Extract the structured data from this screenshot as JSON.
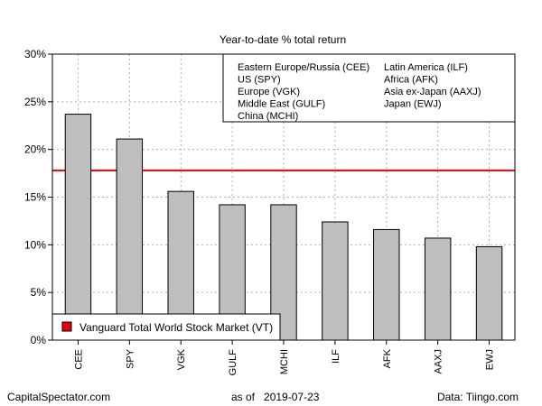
{
  "chart_data": {
    "type": "bar",
    "title": "Year-to-date % total return",
    "categories": [
      "CEE",
      "SPY",
      "VGK",
      "GULF",
      "MCHI",
      "ILF",
      "AFK",
      "AAXJ",
      "EWJ"
    ],
    "values": [
      23.7,
      21.1,
      15.6,
      14.2,
      14.2,
      12.4,
      11.6,
      10.7,
      9.8
    ],
    "ylim": [
      0,
      30
    ],
    "yticks": [
      0,
      5,
      10,
      15,
      20,
      25,
      30
    ],
    "ytick_labels": [
      "0%",
      "5%",
      "10%",
      "15%",
      "20%",
      "25%",
      "30%"
    ],
    "grid": true,
    "bar_color": "#bebebe",
    "reference_line": {
      "label": "Vanguard Total World Stock Market (VT)",
      "value": 17.8,
      "color": "#e8000b"
    },
    "legend_top": {
      "placement": "top-right",
      "columns": [
        [
          "Eastern Europe/Russia (CEE)",
          "US (SPY)",
          "Europe (VGK)",
          "Middle East (GULF)",
          "China (MCHI)"
        ],
        [
          "Latin America (ILF)",
          "Africa (AFK)",
          "Asia ex-Japan (AAXJ)",
          "Japan (EWJ)"
        ]
      ]
    },
    "legend_bottom": {
      "placement": "bottom-left"
    }
  },
  "footer": {
    "left": "CapitalSpectator.com",
    "date_prefix": "as of",
    "date": "2019-07-23",
    "right": "Data: Tiingo.com"
  }
}
